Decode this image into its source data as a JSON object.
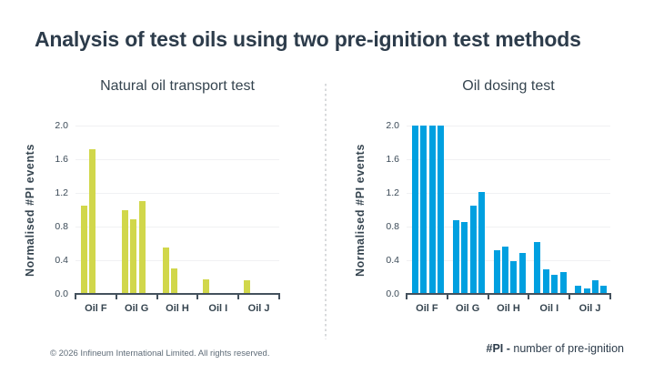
{
  "page": {
    "title": "Analysis of test oils using two pre-ignition test methods",
    "copyright": "© 2026 Infineum International Limited. All rights reserved.",
    "pi_note_bold": "#PI -",
    "pi_note_rest": " number of pre-ignition"
  },
  "colors": {
    "title_text": "#2d3c4b",
    "chart_text": "#35444f",
    "axis": "#44515d",
    "gridline": "#f0f1f3",
    "left_bars": "#d1d74b",
    "right_bars": "#00a0e0",
    "divider": "#d8dadc",
    "footer_text": "#5f6c78"
  },
  "chart_data": [
    {
      "type": "bar",
      "title": "Natural oil transport test",
      "ylabel": "Normalised #PI events",
      "xlabel": "",
      "categories": [
        "Oil F",
        "Oil G",
        "Oil H",
        "Oil I",
        "Oil J"
      ],
      "values_per_category": [
        [
          1.05,
          1.72
        ],
        [
          1.0,
          0.89,
          1.1
        ],
        [
          0.55,
          0.3
        ],
        [
          0.17
        ],
        [
          0.16
        ]
      ],
      "ytick_labels": [
        "0.0",
        "0.4",
        "0.8",
        "1.2",
        "1.6",
        "2.0"
      ],
      "ylim": [
        0,
        2.0
      ],
      "grid": true,
      "legend": "none",
      "bar_color": "#d1d74b"
    },
    {
      "type": "bar",
      "title": "Oil dosing test",
      "ylabel": "Normalised #PI events",
      "xlabel": "",
      "categories": [
        "Oil F",
        "Oil G",
        "Oil H",
        "Oil I",
        "Oil J"
      ],
      "values_per_category": [
        [
          2.0,
          2.0,
          2.0,
          2.0
        ],
        [
          0.88,
          0.85,
          1.05,
          1.21
        ],
        [
          0.52,
          0.56,
          0.39,
          0.49
        ],
        [
          0.62,
          0.29,
          0.23,
          0.26
        ],
        [
          0.1,
          0.06,
          0.16,
          0.1
        ]
      ],
      "ytick_labels": [
        "0.0",
        "0.4",
        "0.8",
        "1.2",
        "1.6",
        "2.0"
      ],
      "ylim": [
        0,
        2.0
      ],
      "grid": true,
      "legend": "none",
      "bar_color": "#00a0e0"
    }
  ]
}
